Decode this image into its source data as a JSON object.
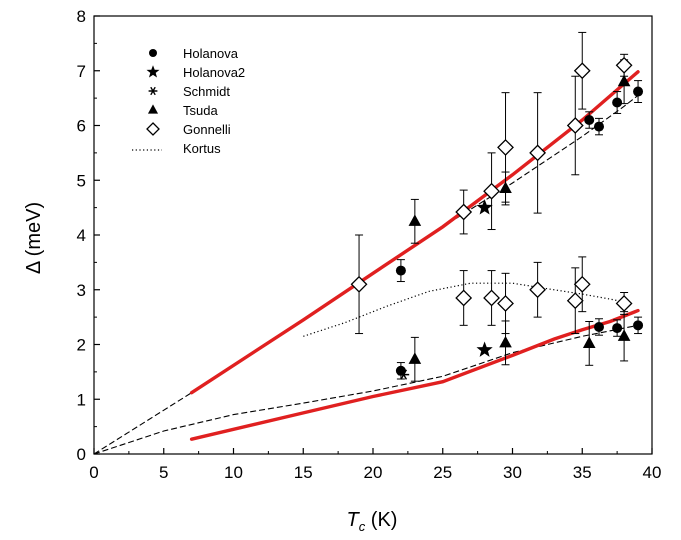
{
  "chart_data": {
    "type": "scatter",
    "title": "",
    "xlabel": "T",
    "xlabel_sub": "c",
    "xlabel_unit": " (K)",
    "ylabel": "Δ (meV)",
    "xlim": [
      0,
      40
    ],
    "ylim": [
      0,
      8
    ],
    "x_ticks": [
      "0",
      "5",
      "10",
      "15",
      "20",
      "25",
      "30",
      "35",
      "40"
    ],
    "y_ticks": [
      "0",
      "1",
      "2",
      "3",
      "4",
      "5",
      "6",
      "7",
      "8"
    ],
    "grid": false,
    "legend_position": "top-left",
    "legend": [
      {
        "label": "Holanova",
        "marker": "circle"
      },
      {
        "label": "Holanova2",
        "marker": "star"
      },
      {
        "label": "Schmidt",
        "marker": "asterisk"
      },
      {
        "label": "Tsuda",
        "marker": "triangle"
      },
      {
        "label": "Gonnelli",
        "marker": "diamond-open"
      },
      {
        "label": "Kortus",
        "marker": "dotted-line"
      }
    ],
    "series": [
      {
        "name": "Holanova",
        "marker": "circle",
        "points": [
          {
            "x": 22.0,
            "y": 3.35,
            "err": 0.2
          },
          {
            "x": 22.0,
            "y": 1.52,
            "err": 0.15
          },
          {
            "x": 35.5,
            "y": 6.1,
            "err": 0.15
          },
          {
            "x": 36.2,
            "y": 5.98,
            "err": 0.15
          },
          {
            "x": 37.5,
            "y": 6.42,
            "err": 0.2
          },
          {
            "x": 39.0,
            "y": 6.62,
            "err": 0.2
          },
          {
            "x": 36.2,
            "y": 2.32,
            "err": 0.15
          },
          {
            "x": 37.5,
            "y": 2.3,
            "err": 0.15
          },
          {
            "x": 39.0,
            "y": 2.35,
            "err": 0.15
          }
        ]
      },
      {
        "name": "Holanova2",
        "marker": "star",
        "points": [
          {
            "x": 28.0,
            "y": 4.5
          },
          {
            "x": 28.0,
            "y": 1.9
          }
        ]
      },
      {
        "name": "Schmidt",
        "marker": "asterisk",
        "points": [
          {
            "x": 22.2,
            "y": 1.45
          }
        ]
      },
      {
        "name": "Tsuda",
        "marker": "triangle",
        "points": [
          {
            "x": 23.0,
            "y": 4.25,
            "err": 0.4
          },
          {
            "x": 29.5,
            "y": 4.85,
            "err": 0.3
          },
          {
            "x": 23.0,
            "y": 1.73,
            "err": 0.4
          },
          {
            "x": 29.5,
            "y": 2.03,
            "err": 0.4
          },
          {
            "x": 35.5,
            "y": 2.02,
            "err": 0.4
          },
          {
            "x": 38.0,
            "y": 6.8,
            "err": 0.4
          },
          {
            "x": 38.0,
            "y": 2.15,
            "err": 0.45
          }
        ]
      },
      {
        "name": "Gonnelli",
        "marker": "diamond-open",
        "points": [
          {
            "x": 19.0,
            "y": 3.1,
            "err": 0.9
          },
          {
            "x": 26.5,
            "y": 4.42,
            "err": 0.4
          },
          {
            "x": 28.5,
            "y": 4.8,
            "err": 0.7
          },
          {
            "x": 29.5,
            "y": 5.6,
            "err": 1.0
          },
          {
            "x": 31.8,
            "y": 5.5,
            "err": 1.1
          },
          {
            "x": 34.5,
            "y": 6.0,
            "err": 0.9
          },
          {
            "x": 35.0,
            "y": 7.0,
            "err": 0.7
          },
          {
            "x": 38.0,
            "y": 7.1,
            "err": 0.2
          },
          {
            "x": 26.5,
            "y": 2.85,
            "err": 0.5
          },
          {
            "x": 28.5,
            "y": 2.85,
            "err": 0.5
          },
          {
            "x": 29.5,
            "y": 2.75,
            "err": 0.55
          },
          {
            "x": 31.8,
            "y": 3.0,
            "err": 0.5
          },
          {
            "x": 34.5,
            "y": 2.8,
            "err": 0.6
          },
          {
            "x": 35.0,
            "y": 3.1,
            "err": 0.5
          },
          {
            "x": 38.0,
            "y": 2.75,
            "err": 0.2
          }
        ]
      }
    ],
    "lines": [
      {
        "name": "Kortus",
        "style": "dotted",
        "color": "#000000",
        "points": [
          [
            15,
            2.15
          ],
          [
            18,
            2.4
          ],
          [
            21,
            2.7
          ],
          [
            24,
            2.97
          ],
          [
            27,
            3.12
          ],
          [
            30,
            3.12
          ],
          [
            33,
            3.0
          ],
          [
            35,
            2.92
          ],
          [
            37,
            2.83
          ],
          [
            38.5,
            2.75
          ]
        ]
      },
      {
        "style": "dashed",
        "color": "#000000",
        "points": [
          [
            0,
            0
          ],
          [
            7,
            1.12
          ],
          [
            15,
            2.45
          ],
          [
            20,
            3.3
          ],
          [
            25,
            4.15
          ],
          [
            30,
            4.95
          ],
          [
            35,
            5.8
          ],
          [
            38,
            6.35
          ],
          [
            39,
            6.55
          ]
        ]
      },
      {
        "style": "dashed",
        "color": "#000000",
        "points": [
          [
            0,
            0
          ],
          [
            5,
            0.42
          ],
          [
            10,
            0.72
          ],
          [
            15,
            0.93
          ],
          [
            20,
            1.15
          ],
          [
            25,
            1.42
          ],
          [
            30,
            1.85
          ],
          [
            35,
            2.15
          ],
          [
            38,
            2.3
          ],
          [
            39,
            2.35
          ]
        ]
      },
      {
        "style": "solid",
        "color": "#e02020",
        "points": [
          [
            7,
            1.12
          ],
          [
            15,
            2.45
          ],
          [
            20,
            3.3
          ],
          [
            25,
            4.15
          ],
          [
            30,
            5.1
          ],
          [
            35,
            6.1
          ],
          [
            39,
            6.98
          ]
        ]
      },
      {
        "style": "solid",
        "color": "#e02020",
        "points": [
          [
            7,
            0.27
          ],
          [
            15,
            0.75
          ],
          [
            20,
            1.05
          ],
          [
            25,
            1.32
          ],
          [
            30,
            1.8
          ],
          [
            33,
            2.1
          ],
          [
            35,
            2.27
          ],
          [
            37,
            2.42
          ],
          [
            39,
            2.62
          ]
        ]
      }
    ]
  }
}
